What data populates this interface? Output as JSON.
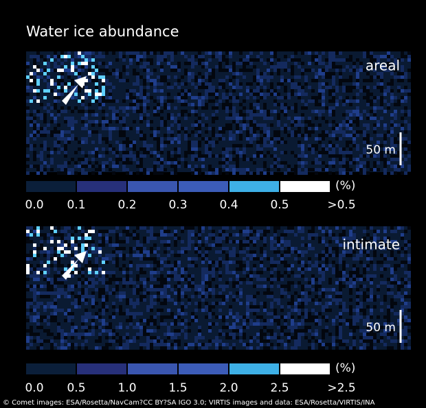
{
  "title": "Water ice abundance",
  "panels": [
    {
      "label": "areal",
      "scale_bar": "50 m",
      "colorbar": {
        "unit": "(%)",
        "ticks": [
          "0.0",
          "0.1",
          "0.2",
          "0.3",
          "0.4",
          "0.5",
          ">0.5"
        ],
        "colors": [
          "#0b1f3a",
          "#27307a",
          "#3a56b0",
          "#3c5cb8",
          "#3eb0e6",
          "#ffffff"
        ]
      }
    },
    {
      "label": "intimate",
      "scale_bar": "50 m",
      "colorbar": {
        "unit": "(%)",
        "ticks": [
          "0.0",
          "0.5",
          "1.0",
          "1.5",
          "2.0",
          "2.5",
          ">2.5"
        ],
        "colors": [
          "#0b1f3a",
          "#27307a",
          "#3a56b0",
          "#3c5cb8",
          "#3eb0e6",
          "#ffffff"
        ]
      }
    }
  ],
  "credit": "© Comet images: ESA/Rosetta/NavCam?CC BY?SA IGO 3.0; VIRTIS images and data: ESA/Rosetta/VIRTIS/INA"
}
